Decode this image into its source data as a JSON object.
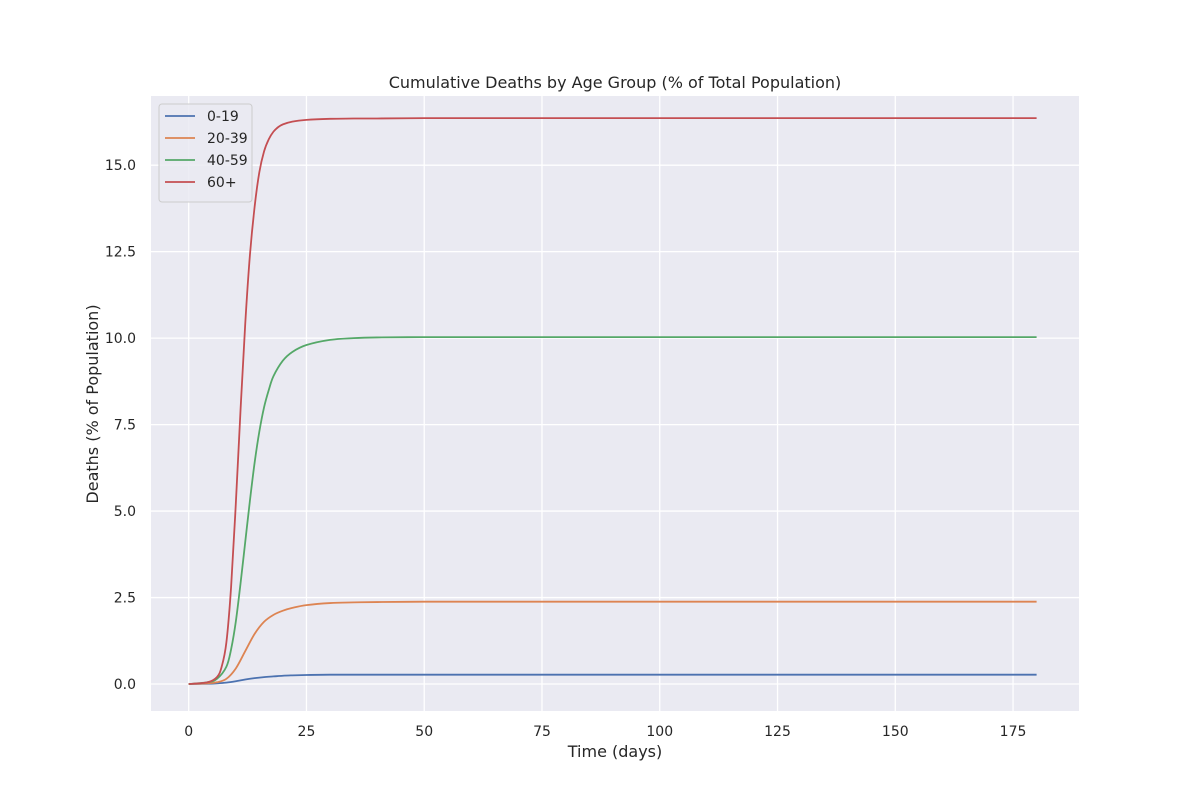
{
  "chart_data": {
    "type": "line",
    "title": "Cumulative Deaths by Age Group (% of Total Population)",
    "xlabel": "Time (days)",
    "ylabel": "Deaths (% of Population)",
    "xlim": [
      -8,
      189
    ],
    "ylim": [
      -0.78,
      17.0
    ],
    "xticks": [
      0,
      25,
      50,
      75,
      100,
      125,
      150,
      175
    ],
    "xtick_labels": [
      "0",
      "25",
      "50",
      "75",
      "100",
      "125",
      "150",
      "175"
    ],
    "yticks": [
      0.0,
      2.5,
      5.0,
      7.5,
      10.0,
      12.5,
      15.0
    ],
    "ytick_labels": [
      "0.0",
      "2.5",
      "5.0",
      "7.5",
      "10.0",
      "12.5",
      "15.0"
    ],
    "grid": true,
    "legend_position": "top-left",
    "series": [
      {
        "name": "0-19",
        "color": "#4c72b0",
        "x": [
          0,
          4,
          6,
          8,
          10,
          12,
          14,
          16,
          18,
          20,
          22,
          25,
          30,
          40,
          60,
          100,
          180
        ],
        "y": [
          0.0,
          0.01,
          0.02,
          0.04,
          0.08,
          0.13,
          0.17,
          0.2,
          0.22,
          0.24,
          0.25,
          0.26,
          0.27,
          0.27,
          0.27,
          0.27,
          0.27
        ]
      },
      {
        "name": "20-39",
        "color": "#dd8452",
        "x": [
          0,
          4,
          6,
          8,
          10,
          12,
          14,
          16,
          18,
          20,
          22,
          25,
          30,
          35,
          40,
          50,
          60,
          100,
          180
        ],
        "y": [
          0.0,
          0.02,
          0.05,
          0.15,
          0.45,
          0.95,
          1.45,
          1.8,
          2.0,
          2.12,
          2.2,
          2.28,
          2.34,
          2.36,
          2.37,
          2.38,
          2.38,
          2.38,
          2.38
        ]
      },
      {
        "name": "40-59",
        "color": "#55a868",
        "x": [
          0,
          4,
          6,
          8,
          9,
          10,
          11,
          12,
          13,
          14,
          15,
          16,
          17,
          18,
          20,
          22,
          25,
          30,
          35,
          40,
          50,
          60,
          100,
          180
        ],
        "y": [
          0.0,
          0.05,
          0.15,
          0.5,
          1.0,
          1.8,
          2.9,
          4.1,
          5.3,
          6.4,
          7.3,
          8.0,
          8.5,
          8.9,
          9.35,
          9.6,
          9.8,
          9.95,
          10.0,
          10.02,
          10.03,
          10.03,
          10.03,
          10.03
        ]
      },
      {
        "name": "60+",
        "color": "#c44e52",
        "x": [
          0,
          4,
          6,
          7,
          8,
          9,
          10,
          11,
          12,
          13,
          14,
          15,
          16,
          17,
          18,
          19,
          20,
          22,
          25,
          30,
          35,
          40,
          50,
          60,
          100,
          180
        ],
        "y": [
          0.0,
          0.05,
          0.2,
          0.5,
          1.2,
          2.8,
          5.2,
          7.9,
          10.4,
          12.4,
          13.8,
          14.8,
          15.4,
          15.75,
          15.97,
          16.1,
          16.18,
          16.26,
          16.31,
          16.34,
          16.35,
          16.35,
          16.36,
          16.36,
          16.36,
          16.36
        ]
      }
    ]
  }
}
